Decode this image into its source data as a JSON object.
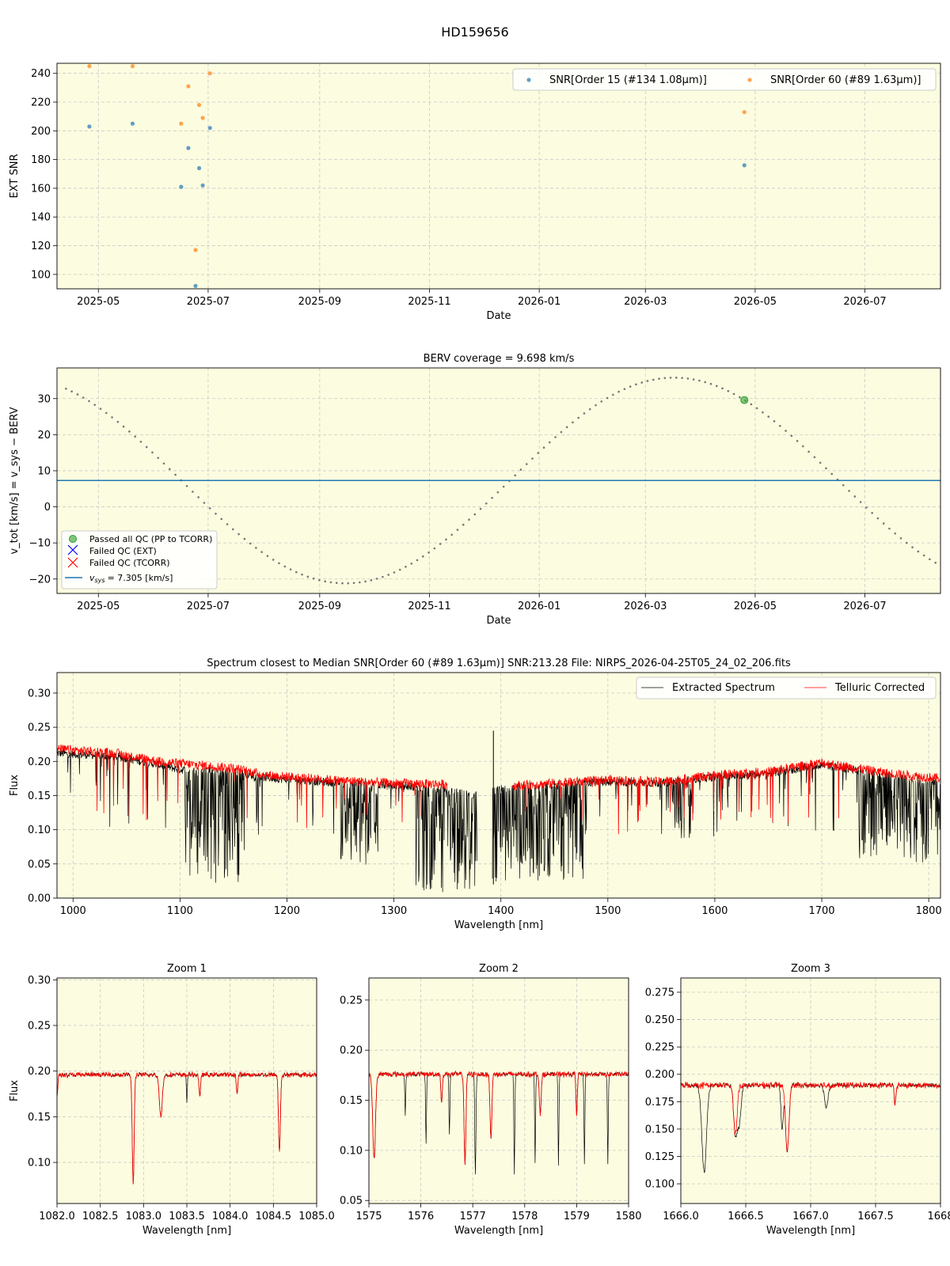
{
  "figure_title": "HD159656",
  "colors": {
    "panel_bg": "#fcfce0",
    "snr15": "#1f77b4",
    "snr60": "#ff7f0e",
    "vsys": "#1f77b4",
    "curve": "#777777",
    "pass": "#2ca02c",
    "extracted": "#000000",
    "telluric": "#ff0000"
  },
  "chart_data": [
    {
      "type": "scatter",
      "title": "",
      "xlabel": "Date",
      "ylabel": "EXT SNR",
      "xlim": [
        "2025-04-08",
        "2026-08-12"
      ],
      "ylim": [
        90,
        247
      ],
      "xticks": [
        "2025-05",
        "2025-07",
        "2025-09",
        "2025-11",
        "2026-01",
        "2026-03",
        "2026-05",
        "2026-07"
      ],
      "yticks": [
        100,
        120,
        140,
        160,
        180,
        200,
        220,
        240
      ],
      "legend_position": "top-right",
      "series": [
        {
          "name": "SNR[Order 15 (#134 1.08μm)]",
          "points": [
            [
              "2025-04-26",
              203
            ],
            [
              "2025-05-20",
              205
            ],
            [
              "2025-06-16",
              161
            ],
            [
              "2025-06-20",
              188
            ],
            [
              "2025-06-24",
              92
            ],
            [
              "2025-06-26",
              174
            ],
            [
              "2025-06-28",
              162
            ],
            [
              "2025-07-02",
              202
            ],
            [
              "2026-04-25",
              176
            ]
          ]
        },
        {
          "name": "SNR[Order 60 (#89 1.63μm)]",
          "points": [
            [
              "2025-04-26",
              245
            ],
            [
              "2025-05-20",
              245
            ],
            [
              "2025-06-16",
              205
            ],
            [
              "2025-06-20",
              231
            ],
            [
              "2025-06-24",
              117
            ],
            [
              "2025-06-26",
              218
            ],
            [
              "2025-06-28",
              209
            ],
            [
              "2025-07-02",
              240
            ],
            [
              "2026-04-25",
              213
            ]
          ]
        }
      ]
    },
    {
      "type": "line",
      "title": "BERV coverage = 9.698 km/s",
      "xlabel": "Date",
      "ylabel": "v_tot [km/s] = v_sys − BERV",
      "xlim": [
        "2025-04-08",
        "2026-08-12"
      ],
      "ylim": [
        -24,
        38.5
      ],
      "xticks": [
        "2025-05",
        "2025-07",
        "2025-09",
        "2025-11",
        "2026-01",
        "2026-03",
        "2026-05",
        "2026-07"
      ],
      "yticks": [
        -20,
        -10,
        0,
        10,
        20,
        30
      ],
      "berv_curve": {
        "mean": 7.305,
        "amplitude": 28.5,
        "peak_date": "2026-03-17",
        "period_days": 365.25,
        "start": "2025-04-13",
        "end": "2026-08-12",
        "style": "dotted"
      },
      "vsys": 7.305,
      "points_passed": [
        [
          "2026-04-25",
          29.6
        ]
      ],
      "legend_position": "lower-left",
      "legend": [
        "Passed all QC (PP to TCORR)",
        "Failed QC (EXT)",
        "Failed QC (TCORR)",
        "= 7.305 [km/s]"
      ],
      "legend_vsys_prefix": "v",
      "legend_vsys_sub": "sys"
    },
    {
      "type": "line",
      "title": "Spectrum closest to Median SNR[Order 60 (#89 1.63μm)]      SNR:213.28      File: NIRPS_2026-04-25T05_24_02_206.fits",
      "xlabel": "Wavelength [nm]",
      "ylabel": "Flux",
      "xlim": [
        985,
        1811
      ],
      "ylim": [
        0,
        0.33
      ],
      "xticks": [
        1000,
        1100,
        1200,
        1300,
        1400,
        1500,
        1600,
        1700,
        1800
      ],
      "yticks": [
        "0.00",
        "0.05",
        "0.10",
        "0.15",
        "0.20",
        "0.25",
        "0.30"
      ],
      "legend_position": "top-right",
      "series": [
        {
          "name": "Extracted Spectrum",
          "continuum": [
            [
              985,
              0.212
            ],
            [
              1040,
              0.207
            ],
            [
              1080,
              0.195
            ],
            [
              1100,
              0.188
            ],
            [
              1150,
              0.185
            ],
            [
              1180,
              0.176
            ],
            [
              1250,
              0.168
            ],
            [
              1300,
              0.165
            ],
            [
              1340,
              0.16
            ],
            [
              1375,
              0.15
            ],
            [
              1410,
              0.163
            ],
            [
              1450,
              0.167
            ],
            [
              1500,
              0.17
            ],
            [
              1550,
              0.168
            ],
            [
              1600,
              0.177
            ],
            [
              1650,
              0.182
            ],
            [
              1700,
              0.195
            ],
            [
              1760,
              0.18
            ],
            [
              1811,
              0.17
            ]
          ],
          "gaps": [
            [
              1378,
              1392
            ]
          ],
          "spike": [
            1393,
            0.245
          ],
          "deep_bands": [
            [
              1105,
              1160,
              0.9
            ],
            [
              1250,
              1285,
              0.7
            ],
            [
              1320,
              1378,
              0.95
            ],
            [
              1392,
              1480,
              0.85
            ],
            [
              1560,
              1580,
              0.5
            ],
            [
              1735,
              1811,
              0.7
            ]
          ]
        },
        {
          "name": "Telluric Corrected",
          "continuum": [
            [
              985,
              0.218
            ],
            [
              1040,
              0.212
            ],
            [
              1080,
              0.2
            ],
            [
              1100,
              0.197
            ],
            [
              1150,
              0.19
            ],
            [
              1180,
              0.18
            ],
            [
              1250,
              0.172
            ],
            [
              1300,
              0.168
            ],
            [
              1340,
              0.167
            ],
            [
              1375,
              0.163
            ],
            [
              1410,
              0.164
            ],
            [
              1450,
              0.168
            ],
            [
              1500,
              0.173
            ],
            [
              1550,
              0.17
            ],
            [
              1600,
              0.18
            ],
            [
              1650,
              0.185
            ],
            [
              1700,
              0.198
            ],
            [
              1760,
              0.183
            ],
            [
              1811,
              0.175
            ]
          ],
          "gaps": [
            [
              1350,
              1395
            ],
            [
              1392,
              1410
            ]
          ]
        }
      ]
    },
    {
      "type": "line",
      "title": "Zoom 1",
      "xlabel": "Wavelength [nm]",
      "ylabel": "Flux",
      "xlim": [
        1082.0,
        1085.0
      ],
      "ylim": [
        0.055,
        0.302
      ],
      "xticks": [
        "1082.0",
        "1082.5",
        "1083.0",
        "1083.5",
        "1084.0",
        "1084.5",
        "1085.0"
      ],
      "yticks": [
        "0.10",
        "0.15",
        "0.20",
        "0.25",
        "0.30"
      ],
      "continuum": 0.196,
      "lines_both": [
        [
          1082.0,
          0.025,
          0.02
        ],
        [
          1082.88,
          0.12,
          0.025
        ],
        [
          1083.2,
          0.045,
          0.04
        ],
        [
          1083.65,
          0.025,
          0.02
        ],
        [
          1084.08,
          0.022,
          0.018
        ],
        [
          1084.57,
          0.085,
          0.025
        ]
      ],
      "lines_extracted_only": [
        [
          1083.5,
          0.03,
          0.012
        ]
      ]
    },
    {
      "type": "line",
      "title": "Zoom 2",
      "xlabel": "Wavelength [nm]",
      "ylabel": "",
      "xlim": [
        1575,
        1580
      ],
      "ylim": [
        0.047,
        0.272
      ],
      "xticks": [
        "1575",
        "1576",
        "1577",
        "1578",
        "1579",
        "1580"
      ],
      "yticks": [
        "0.05",
        "0.10",
        "0.15",
        "0.20",
        "0.25"
      ],
      "continuum": 0.176,
      "lines_both": [
        [
          1575.1,
          0.085,
          0.06
        ],
        [
          1576.4,
          0.03,
          0.03
        ],
        [
          1576.85,
          0.09,
          0.04
        ],
        [
          1577.35,
          0.065,
          0.04
        ],
        [
          1578.3,
          0.04,
          0.04
        ],
        [
          1579.0,
          0.04,
          0.03
        ]
      ],
      "lines_extracted_only": [
        [
          1575.7,
          0.04,
          0.02
        ],
        [
          1576.1,
          0.07,
          0.02
        ],
        [
          1576.55,
          0.06,
          0.02
        ],
        [
          1577.05,
          0.1,
          0.025
        ],
        [
          1577.8,
          0.1,
          0.02
        ],
        [
          1578.2,
          0.09,
          0.02
        ],
        [
          1578.65,
          0.09,
          0.02
        ],
        [
          1579.15,
          0.09,
          0.02
        ],
        [
          1579.6,
          0.09,
          0.02
        ]
      ]
    },
    {
      "type": "line",
      "title": "Zoom 3",
      "xlabel": "Wavelength [nm]",
      "ylabel": "",
      "xlim": [
        1666.0,
        1668.0
      ],
      "ylim": [
        0.082,
        0.288
      ],
      "xticks": [
        "1666.0",
        "1666.5",
        "1667.0",
        "1667.5",
        "1668"
      ],
      "yticks": [
        "0.100",
        "0.125",
        "0.150",
        "0.175",
        "0.200",
        "0.225",
        "0.250",
        "0.275"
      ],
      "continuum": 0.19,
      "lines_both": [
        [
          1666.42,
          0.045,
          0.03
        ],
        [
          1666.82,
          0.06,
          0.03
        ],
        [
          1667.65,
          0.018,
          0.015
        ]
      ],
      "lines_extracted_only": [
        [
          1666.18,
          0.08,
          0.04
        ],
        [
          1666.45,
          0.035,
          0.03
        ],
        [
          1666.78,
          0.04,
          0.02
        ],
        [
          1667.12,
          0.02,
          0.03
        ]
      ]
    }
  ]
}
